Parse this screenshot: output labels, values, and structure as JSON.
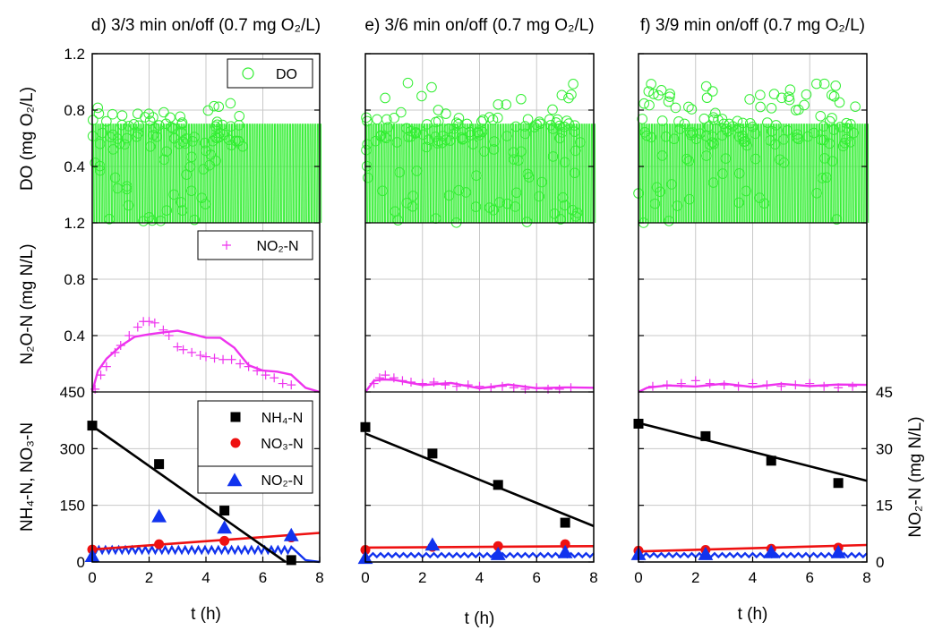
{
  "colors": {
    "do": "#33ee33",
    "no2_n2o": "#ee33ee",
    "nh4": "#000000",
    "no3": "#ee1111",
    "no2": "#1133ee",
    "frame": "#000000",
    "grid": "#c8c8c8"
  },
  "chart_data": {
    "type": "line",
    "shared": {
      "xlabel": "t (h)",
      "xlim": [
        0,
        8
      ],
      "xticks": [
        "0",
        "2",
        "4",
        "6",
        "8"
      ],
      "row_labels": {
        "do": "DO (mg O₂/L)",
        "n2o": "N₂O-N (mg N/L)",
        "n": "NH₄-N, NO₃-N",
        "no2_right": "NO₂-N (mg N/L)"
      },
      "do_ylim": [
        0,
        1.2
      ],
      "do_yticks": [
        "1.2",
        "0.8",
        "0.4"
      ],
      "n2o_ylim": [
        0,
        1.2
      ],
      "n2o_yticks": [
        "1.2",
        "0.8",
        "0.4"
      ],
      "n_ylim": [
        0,
        450
      ],
      "n_yticks": [
        "450",
        "300",
        "150",
        "0"
      ],
      "no2_ylim": [
        0,
        45
      ],
      "no2_yticks": [
        "45",
        "30",
        "15",
        "0"
      ],
      "legends": {
        "do": "DO",
        "no2_marker": "NO₂-N",
        "nh4": "NH₄-N",
        "no3": "NO₃-N",
        "no2": "NO₂-N"
      }
    },
    "panels": [
      {
        "title": "d) 3/3 min on/off (0.7 mg O₂/L)",
        "do_scatter_max": 0.85,
        "n2o_line": [
          [
            0,
            0
          ],
          [
            0.2,
            0.15
          ],
          [
            0.5,
            0.25
          ],
          [
            1,
            0.32
          ],
          [
            1.5,
            0.38
          ],
          [
            2,
            0.42
          ],
          [
            2.5,
            0.43
          ],
          [
            3,
            0.42
          ],
          [
            3.5,
            0.41
          ],
          [
            4,
            0.4
          ],
          [
            4.5,
            0.38
          ],
          [
            5,
            0.3
          ],
          [
            5.5,
            0.2
          ],
          [
            6,
            0.16
          ],
          [
            6.5,
            0.13
          ],
          [
            7,
            0.12
          ],
          [
            7.5,
            0.03
          ],
          [
            8,
            0
          ]
        ],
        "n2o_scatter": [
          [
            0.1,
            0.02
          ],
          [
            0.3,
            0.12
          ],
          [
            0.5,
            0.18
          ],
          [
            0.8,
            0.28
          ],
          [
            1,
            0.33
          ],
          [
            1.3,
            0.4
          ],
          [
            1.6,
            0.46
          ],
          [
            1.8,
            0.5
          ],
          [
            2,
            0.5
          ],
          [
            2.2,
            0.49
          ],
          [
            2.5,
            0.44
          ],
          [
            2.7,
            0.4
          ],
          [
            3,
            0.32
          ],
          [
            3.2,
            0.3
          ],
          [
            3.5,
            0.28
          ],
          [
            3.8,
            0.26
          ],
          [
            4,
            0.25
          ],
          [
            4.3,
            0.24
          ],
          [
            4.6,
            0.23
          ],
          [
            4.9,
            0.23
          ],
          [
            5.2,
            0.2
          ],
          [
            5.5,
            0.18
          ],
          [
            5.8,
            0.15
          ],
          [
            6.1,
            0.12
          ],
          [
            6.4,
            0.1
          ],
          [
            6.7,
            0.06
          ],
          [
            7,
            0.05
          ]
        ],
        "nh4": [
          [
            0,
            361
          ],
          [
            2.35,
            259
          ],
          [
            4.65,
            136
          ],
          [
            7,
            5
          ]
        ],
        "nh4_line": [
          [
            0,
            360
          ],
          [
            6.8,
            0
          ]
        ],
        "no3": [
          [
            0,
            33
          ],
          [
            2.35,
            47
          ],
          [
            4.65,
            56
          ],
          [
            7,
            65
          ]
        ],
        "no3_line": [
          [
            0,
            33
          ],
          [
            8,
            77
          ]
        ],
        "no2_markers": [
          [
            0,
            1.5
          ],
          [
            2.35,
            12
          ],
          [
            4.65,
            9
          ],
          [
            7,
            7
          ]
        ],
        "no2_line_level": 3.2,
        "no2_line_amp": 0.8,
        "no2_line_end": 7
      },
      {
        "title": "e) 3/6 min on/off (0.7 mg O₂/L)",
        "do_scatter_max": 1.0,
        "n2o_line": [
          [
            0,
            0
          ],
          [
            0.3,
            0.08
          ],
          [
            0.6,
            0.1
          ],
          [
            1,
            0.08
          ],
          [
            2,
            0.06
          ],
          [
            3,
            0.05
          ],
          [
            4,
            0.04
          ],
          [
            5,
            0.04
          ],
          [
            6,
            0.035
          ],
          [
            7,
            0.03
          ],
          [
            8,
            0.03
          ]
        ],
        "n2o_scatter": [
          [
            0.3,
            0.06
          ],
          [
            0.5,
            0.1
          ],
          [
            0.7,
            0.12
          ],
          [
            1,
            0.1
          ],
          [
            1.3,
            0.08
          ],
          [
            1.6,
            0.07
          ],
          [
            2,
            0.06
          ],
          [
            2.4,
            0.07
          ],
          [
            2.8,
            0.05
          ],
          [
            3.2,
            0.04
          ],
          [
            3.6,
            0.05
          ],
          [
            4,
            0.04
          ],
          [
            4.4,
            0.03
          ],
          [
            4.8,
            0.04
          ],
          [
            5.2,
            0.03
          ],
          [
            5.6,
            0.02
          ],
          [
            6,
            0.03
          ],
          [
            6.4,
            0.02
          ],
          [
            6.8,
            0.02
          ],
          [
            7.2,
            0.03
          ]
        ],
        "nh4": [
          [
            0,
            357
          ],
          [
            2.35,
            287
          ],
          [
            4.65,
            204
          ],
          [
            7,
            104
          ]
        ],
        "nh4_line": [
          [
            0,
            340
          ],
          [
            8,
            95
          ]
        ],
        "no3": [
          [
            0,
            32
          ],
          [
            2.35,
            40
          ],
          [
            4.65,
            42
          ],
          [
            7,
            47
          ]
        ],
        "no3_line": [
          [
            0,
            38
          ],
          [
            8,
            42
          ]
        ],
        "no2_markers": [
          [
            0,
            1
          ],
          [
            2.35,
            4.5
          ],
          [
            4.65,
            2
          ],
          [
            7,
            2.5
          ]
        ],
        "no2_line_level": 1.8,
        "no2_line_amp": 0.5,
        "no2_line_end": 8
      },
      {
        "title": "f) 3/9 min on/off (0.7 mg O₂/L)",
        "do_scatter_max": 1.0,
        "n2o_line": [
          [
            0,
            0
          ],
          [
            0.3,
            0.03
          ],
          [
            1,
            0.04
          ],
          [
            2,
            0.05
          ],
          [
            3,
            0.045
          ],
          [
            4,
            0.05
          ],
          [
            5,
            0.045
          ],
          [
            6,
            0.05
          ],
          [
            7,
            0.05
          ],
          [
            8,
            0.05
          ]
        ],
        "n2o_scatter": [
          [
            0.5,
            0.04
          ],
          [
            1,
            0.05
          ],
          [
            1.5,
            0.06
          ],
          [
            2,
            0.08
          ],
          [
            2.5,
            0.06
          ],
          [
            3,
            0.05
          ],
          [
            3.5,
            0.04
          ],
          [
            4,
            0.06
          ],
          [
            4.5,
            0.05
          ],
          [
            5,
            0.04
          ],
          [
            5.5,
            0.05
          ],
          [
            6,
            0.06
          ],
          [
            6.5,
            0.04
          ],
          [
            7,
            0.03
          ],
          [
            7.5,
            0.04
          ]
        ],
        "nh4": [
          [
            0,
            366
          ],
          [
            2.35,
            333
          ],
          [
            4.65,
            268
          ],
          [
            7,
            209
          ]
        ],
        "nh4_line": [
          [
            0,
            368
          ],
          [
            8,
            215
          ]
        ],
        "no3": [
          [
            0,
            30
          ],
          [
            2.35,
            32
          ],
          [
            4.65,
            35
          ],
          [
            7,
            38
          ]
        ],
        "no3_line": [
          [
            0,
            28
          ],
          [
            8,
            45
          ]
        ],
        "no2_markers": [
          [
            0,
            2
          ],
          [
            2.35,
            2
          ],
          [
            4.65,
            2.5
          ],
          [
            7,
            2.5
          ]
        ],
        "no2_line_level": 1.8,
        "no2_line_amp": 0.5,
        "no2_line_end": 8
      }
    ]
  }
}
